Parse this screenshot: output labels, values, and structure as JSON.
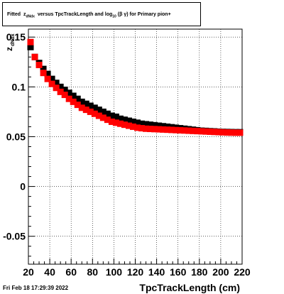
{
  "title": {
    "prefix": "Fitted",
    "z": "z",
    "z_sub": "dNdx",
    "middle": "versus TpcTrackLength and log",
    "log_sub": "10",
    "beta_gamma": "(β  γ)",
    "suffix": "for Primary pion+"
  },
  "footer_timestamp": "Fri Feb 18 17:29:39 2022",
  "chart_data": {
    "type": "scatter",
    "xlabel": "TpcTrackLength (cm)",
    "ylabel": "z",
    "ylabel_sub": "dNdx",
    "xlim": [
      20,
      220
    ],
    "ylim": [
      -0.078,
      0.158
    ],
    "x_ticks": [
      20,
      40,
      60,
      80,
      100,
      120,
      140,
      160,
      180,
      200,
      220
    ],
    "y_ticks": [
      -0.05,
      0,
      0.05,
      0.1,
      0.15
    ],
    "y_tick_labels": [
      "-0.05",
      "0",
      "0.05",
      "0.1",
      "0.15"
    ],
    "grid": true,
    "series": [
      {
        "color": "#000000",
        "x": [
          22,
          26,
          30,
          34,
          38,
          42,
          46,
          50,
          54,
          58,
          62,
          66,
          70,
          74,
          78,
          82,
          86,
          90,
          94,
          98,
          102,
          106,
          110,
          114,
          118,
          122,
          126,
          130,
          134,
          138,
          142,
          146,
          150,
          154,
          158,
          162,
          166,
          170,
          174,
          178,
          182,
          186,
          190,
          194,
          198,
          202,
          206,
          210,
          214,
          218
        ],
        "y": [
          0.14,
          0.13,
          0.124,
          0.118,
          0.113,
          0.108,
          0.104,
          0.1,
          0.097,
          0.094,
          0.091,
          0.088,
          0.085,
          0.083,
          0.081,
          0.079,
          0.077,
          0.075,
          0.073,
          0.071,
          0.07,
          0.068,
          0.067,
          0.066,
          0.065,
          0.064,
          0.063,
          0.0625,
          0.062,
          0.0615,
          0.061,
          0.0605,
          0.06,
          0.0595,
          0.059,
          0.0585,
          0.058,
          0.0575,
          0.057,
          0.0565,
          0.056,
          0.0558,
          0.0555,
          0.0553,
          0.055,
          0.0548,
          0.0547,
          0.0546,
          0.0545,
          0.0545
        ]
      },
      {
        "color": "#ff0000",
        "x": [
          22,
          26,
          30,
          34,
          38,
          42,
          46,
          50,
          54,
          58,
          62,
          66,
          70,
          74,
          78,
          82,
          86,
          90,
          94,
          98,
          102,
          106,
          110,
          114,
          118,
          122,
          126,
          130,
          134,
          138,
          142,
          146,
          150,
          154,
          158,
          162,
          166,
          170,
          174,
          178,
          182,
          186,
          190,
          194,
          198,
          202,
          206,
          210,
          214,
          218
        ],
        "y": [
          0.145,
          0.13,
          0.122,
          0.114,
          0.108,
          0.103,
          0.099,
          0.095,
          0.092,
          0.088,
          0.085,
          0.082,
          0.079,
          0.077,
          0.075,
          0.073,
          0.071,
          0.069,
          0.067,
          0.065,
          0.064,
          0.063,
          0.062,
          0.061,
          0.06,
          0.059,
          0.0585,
          0.058,
          0.0578,
          0.0576,
          0.0574,
          0.0572,
          0.057,
          0.0568,
          0.0566,
          0.0564,
          0.0562,
          0.056,
          0.0558,
          0.0556,
          0.0554,
          0.0552,
          0.055,
          0.0548,
          0.0546,
          0.0544,
          0.0542,
          0.0541,
          0.054,
          0.054
        ]
      }
    ]
  }
}
